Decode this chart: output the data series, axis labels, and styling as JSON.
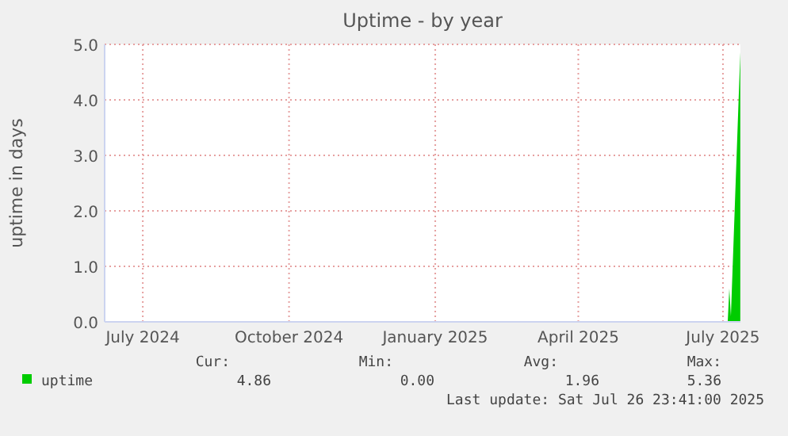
{
  "chart_data": {
    "type": "area",
    "title": "Uptime - by year",
    "ylabel": "uptime in days",
    "x": [
      "2025-07-19",
      "2025-07-20",
      "2025-07-21",
      "2025-07-26T22:00"
    ],
    "series": [
      {
        "name": "uptime",
        "color": "#00cc00",
        "values": [
          0,
          0.6,
          0.1,
          4.86
        ]
      }
    ],
    "xlim": [
      "2024-06-22",
      "2025-07-27"
    ],
    "xticks": [
      {
        "value": "2024-07-16",
        "label": "July 2024"
      },
      {
        "value": "2024-10-16",
        "label": "October 2024"
      },
      {
        "value": "2025-01-16",
        "label": "January 2025"
      },
      {
        "value": "2025-04-16",
        "label": "April 2025"
      },
      {
        "value": "2025-07-16",
        "label": "July 2025"
      }
    ],
    "ylim": [
      0,
      5
    ],
    "yticks": [
      {
        "value": 0,
        "label": "0.0"
      },
      {
        "value": 1,
        "label": "1.0"
      },
      {
        "value": 2,
        "label": "2.0"
      },
      {
        "value": 3,
        "label": "3.0"
      },
      {
        "value": 4,
        "label": "4.0"
      },
      {
        "value": 5,
        "label": "5.0"
      }
    ],
    "grid": true,
    "legend": "bottom left",
    "annotations": [
      "Cur:",
      "Min:",
      "Avg:",
      "Max:",
      "4.86",
      "0.00",
      "1.96",
      "5.36",
      "Last update: Sat Jul 26 23:41:00 2025"
    ]
  }
}
